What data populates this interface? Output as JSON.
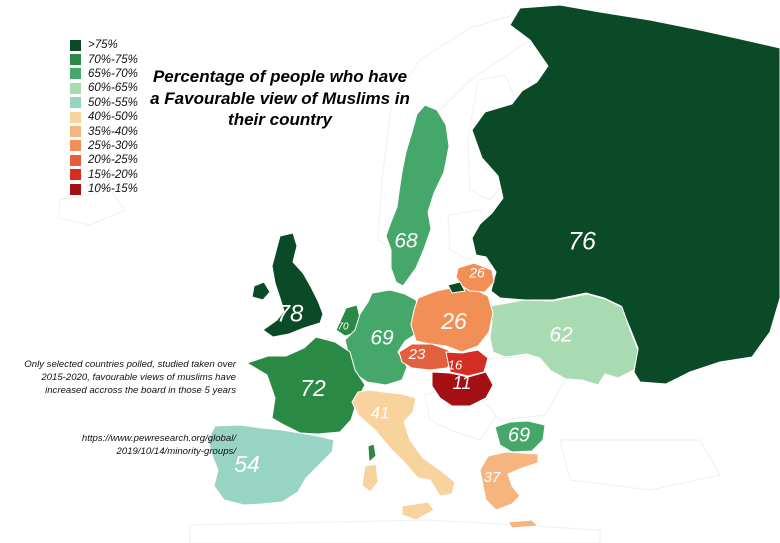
{
  "title": "Percentage of people who have a Favourable view of Muslims in their country",
  "note": "Only selected countries polled, studied taken over 2015-2020, favourable views of muslims have increased accross the board in those 5 years",
  "source": "https://www.pewresearch.org/global/ 2019/10/14/minority-groups/",
  "legend": [
    {
      "label": ">75%",
      "color": "#0b4a27"
    },
    {
      "label": "70%-75%",
      "color": "#2a8a45"
    },
    {
      "label": "65%-70%",
      "color": "#45a86a"
    },
    {
      "label": "60%-65%",
      "color": "#a8dbb2"
    },
    {
      "label": "50%-55%",
      "color": "#98d4c4"
    },
    {
      "label": "40%-50%",
      "color": "#f9d39d"
    },
    {
      "label": "35%-40%",
      "color": "#f6b57e"
    },
    {
      "label": "25%-30%",
      "color": "#f28f56"
    },
    {
      "label": "20%-25%",
      "color": "#e3603f"
    },
    {
      "label": "15%-20%",
      "color": "#d42d24"
    },
    {
      "label": "10%-15%",
      "color": "#a30f12"
    }
  ],
  "countries": {
    "russia": {
      "value": "76",
      "color": "#0b4a27"
    },
    "uk": {
      "value": "78",
      "color": "#0b4a27"
    },
    "sweden": {
      "value": "68",
      "color": "#45a86a"
    },
    "netherlands": {
      "value": "70",
      "color": "#2a8a45"
    },
    "germany": {
      "value": "69",
      "color": "#45a86a"
    },
    "france": {
      "value": "72",
      "color": "#2a8a45"
    },
    "poland": {
      "value": "26",
      "color": "#f28f56"
    },
    "lithuania": {
      "value": "26",
      "color": "#f28f56"
    },
    "ukraine": {
      "value": "62",
      "color": "#a8dbb2"
    },
    "czechia": {
      "value": "23",
      "color": "#e3603f"
    },
    "slovakia": {
      "value": "16",
      "color": "#d42d24"
    },
    "hungary": {
      "value": "11",
      "color": "#a30f12"
    },
    "bulgaria": {
      "value": "69",
      "color": "#45a86a"
    },
    "italy": {
      "value": "41",
      "color": "#f9d39d"
    },
    "greece": {
      "value": "37",
      "color": "#f6b57e"
    },
    "spain": {
      "value": "54",
      "color": "#98d4c4"
    }
  },
  "unpolled_color": "#ffffff"
}
